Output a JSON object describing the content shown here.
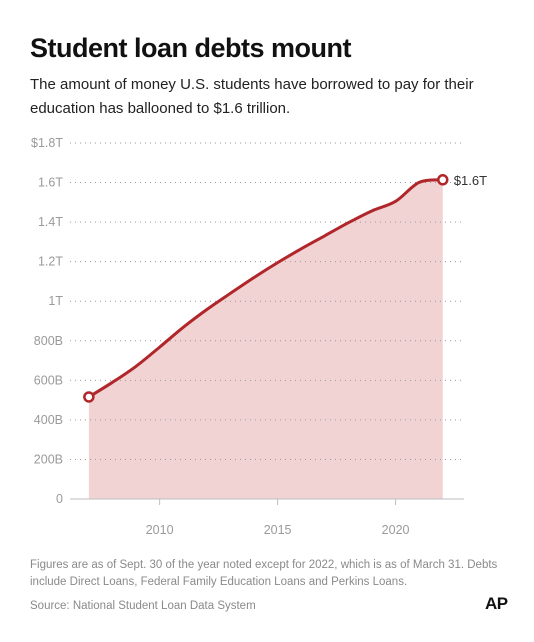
{
  "header": {
    "title": "Student loan debts mount",
    "subtitle": "The amount of money U.S. students have borrowed to pay for their education has ballooned to $1.6 trillion."
  },
  "chart_data": {
    "type": "area",
    "x": [
      2007,
      2008,
      2009,
      2010,
      2011,
      2012,
      2013,
      2014,
      2015,
      2016,
      2017,
      2018,
      2019,
      2020,
      2021,
      2022
    ],
    "series": [
      {
        "values": [
          516,
          590,
          671,
          768,
          868,
          958,
          1040,
          1120,
          1195,
          1265,
          1331,
          1397,
          1457,
          1505,
          1601,
          1614
        ]
      }
    ],
    "xlim": [
      2006.2,
      2022.9
    ],
    "ylim": [
      0,
      1800
    ],
    "x_ticks": [
      {
        "value": 2010,
        "label": "2010"
      },
      {
        "value": 2015,
        "label": "2015"
      },
      {
        "value": 2020,
        "label": "2020"
      }
    ],
    "y_ticks": [
      {
        "value": 0,
        "label": "0"
      },
      {
        "value": 200,
        "label": "200B"
      },
      {
        "value": 400,
        "label": "400B"
      },
      {
        "value": 600,
        "label": "600B"
      },
      {
        "value": 800,
        "label": "800B"
      },
      {
        "value": 1000,
        "label": "1T"
      },
      {
        "value": 1200,
        "label": "1.2T"
      },
      {
        "value": 1400,
        "label": "1.4T"
      },
      {
        "value": 1600,
        "label": "1.6T"
      },
      {
        "value": 1800,
        "label": "$1.8T"
      }
    ],
    "end_label": "$1.6T",
    "grid": true,
    "line_color": "#b0262a",
    "fill_color": "#f2d3d3"
  },
  "footer": {
    "notes": "Figures are as of Sept. 30 of the year noted except for 2022, which is as of March 31. Debts include Direct Loans, Federal Family Education Loans and Perkins Loans.",
    "source": "Source: National Student Loan Data System",
    "logo": "AP"
  }
}
